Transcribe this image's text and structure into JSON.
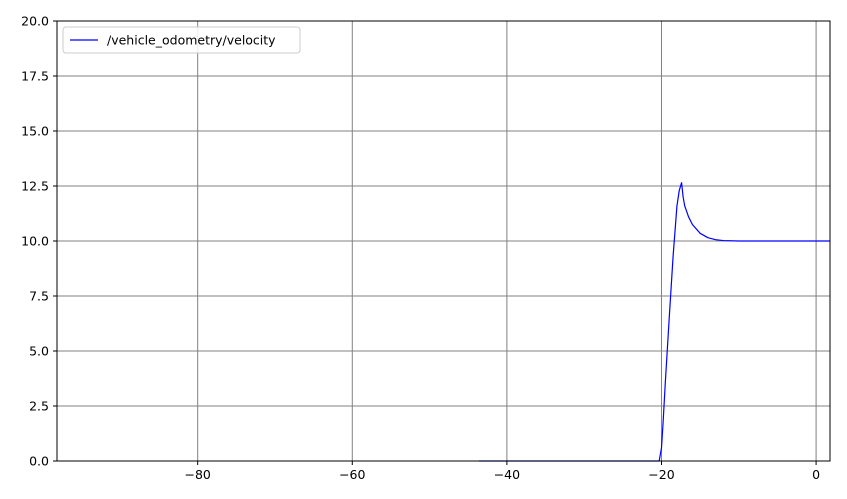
{
  "chart_data": {
    "type": "line",
    "title": "",
    "xlabel": "",
    "ylabel": "",
    "xlim": [
      -98.2,
      1.8
    ],
    "ylim": [
      0,
      20
    ],
    "xticks": [
      -80,
      -60,
      -40,
      -20,
      0
    ],
    "xtick_labels": [
      "−80",
      "−60",
      "−40",
      "−20",
      "0"
    ],
    "yticks": [
      0,
      2.5,
      5,
      7.5,
      10,
      12.5,
      15,
      17.5,
      20
    ],
    "ytick_labels": [
      "0.0",
      "2.5",
      "5.0",
      "7.5",
      "10.0",
      "12.5",
      "15.0",
      "17.5",
      "20.0"
    ],
    "grid": true,
    "legend_position": "top-left",
    "series": [
      {
        "name": "/vehicle_odometry/velocity",
        "color": "#0000ff",
        "x": [
          -43.6,
          -30,
          -21.5,
          -20.3,
          -20.0,
          -19.8,
          -19.5,
          -19.0,
          -18.5,
          -18.0,
          -17.7,
          -17.4,
          -17.2,
          -17.0,
          -16.5,
          -16.0,
          -15.0,
          -14.0,
          -13.0,
          -12.0,
          -10.0,
          -8.0,
          -5.0,
          0.0,
          1.8
        ],
        "y": [
          0.0,
          0.0,
          0.0,
          0.0,
          0.6,
          1.7,
          3.6,
          6.5,
          9.3,
          11.6,
          12.3,
          12.65,
          12.0,
          11.6,
          11.1,
          10.75,
          10.35,
          10.15,
          10.06,
          10.02,
          10.0,
          10.0,
          10.0,
          10.0,
          10.0
        ]
      }
    ]
  },
  "colors": {
    "grid": "#808080",
    "axes": "#000000",
    "line": "#0000ff",
    "legend_border": "#cccccc"
  }
}
